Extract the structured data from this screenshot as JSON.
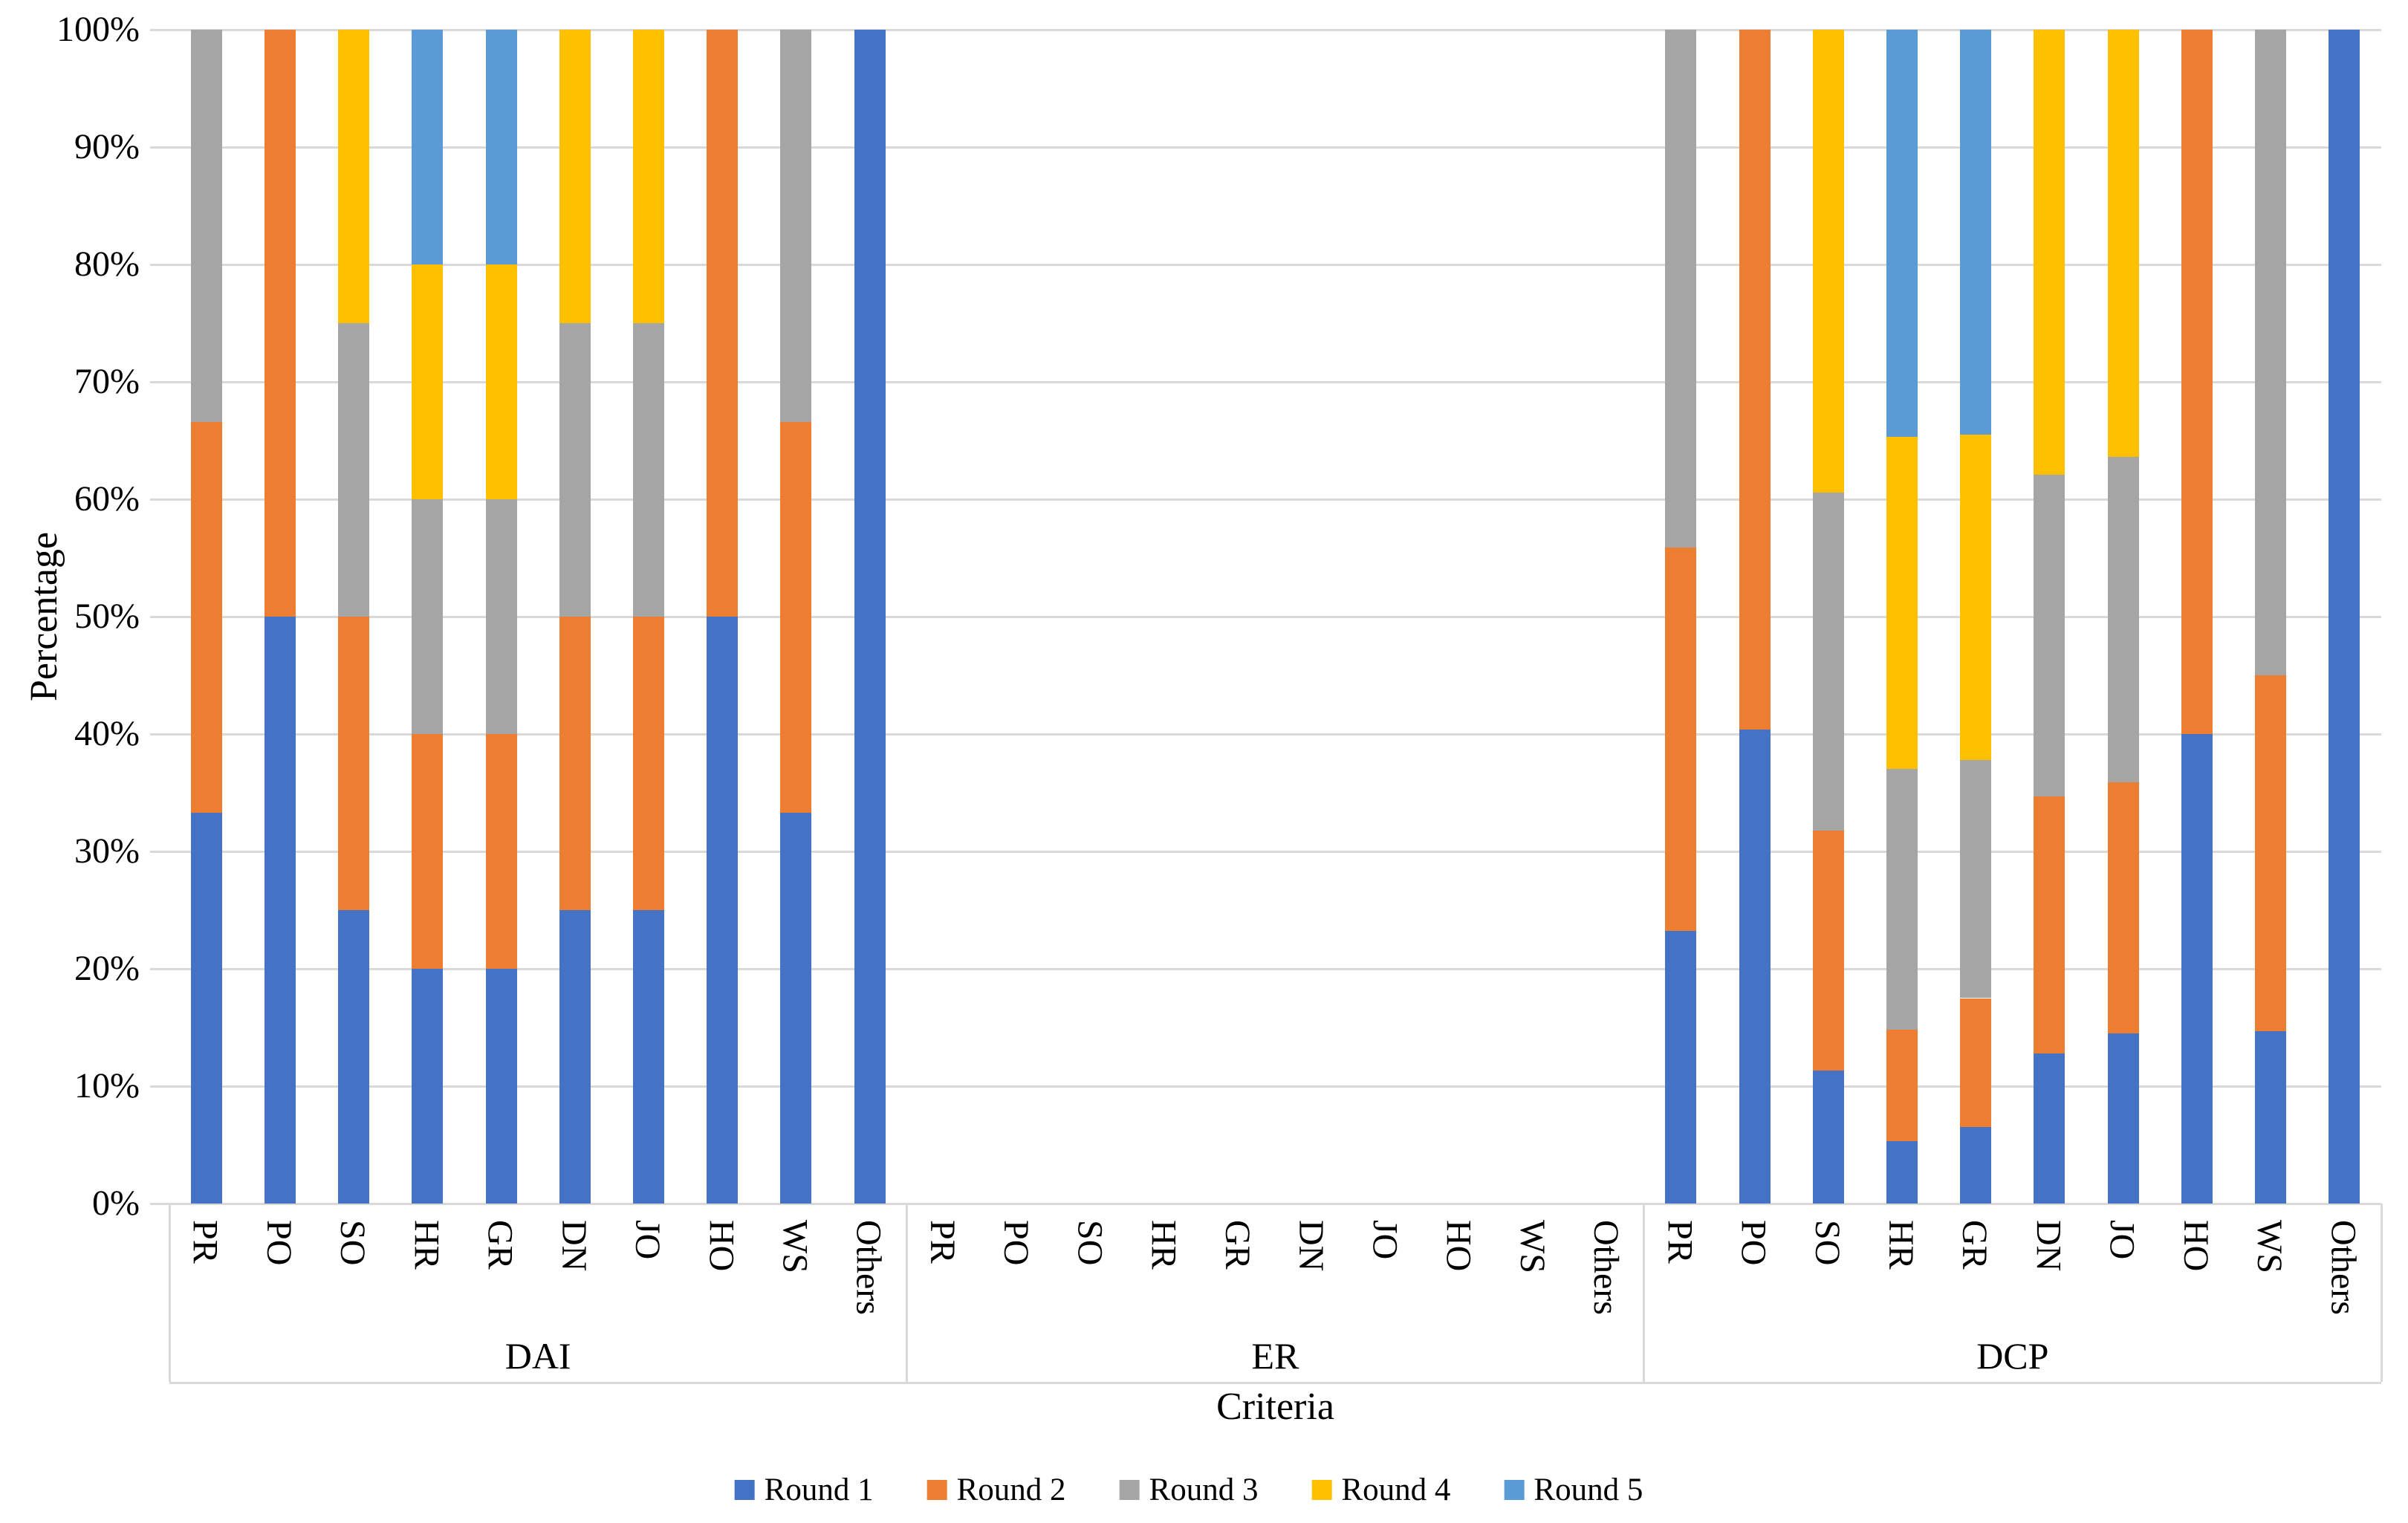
{
  "chart_data": {
    "type": "bar",
    "variant": "stacked-100-percent",
    "title": "",
    "xlabel": "Criteria",
    "ylabel": "Percentage",
    "ylim": [
      0,
      100
    ],
    "grid": true,
    "legend_position": "bottom",
    "y_ticks": [
      "0%",
      "10%",
      "20%",
      "30%",
      "40%",
      "50%",
      "60%",
      "70%",
      "80%",
      "90%",
      "100%"
    ],
    "categories": [
      "PR",
      "PO",
      "SO",
      "HR",
      "GR",
      "DN",
      "JO",
      "HO",
      "WS",
      "Others"
    ],
    "series": [
      {
        "name": "Round 1",
        "color": "#4472C4"
      },
      {
        "name": "Round 2",
        "color": "#ED7D31"
      },
      {
        "name": "Round 3",
        "color": "#A5A5A5"
      },
      {
        "name": "Round 4",
        "color": "#FFC000"
      },
      {
        "name": "Round 5",
        "color": "#5B9BD5"
      }
    ],
    "groups": [
      {
        "label": "DAI",
        "values": [
          [
            33.3,
            33.3,
            33.4,
            0,
            0
          ],
          [
            50,
            50,
            0,
            0,
            0
          ],
          [
            25,
            25,
            25,
            25,
            0
          ],
          [
            20,
            20,
            20,
            20,
            20
          ],
          [
            20,
            20,
            20,
            20,
            20
          ],
          [
            25,
            25,
            25,
            25,
            0
          ],
          [
            25,
            25,
            25,
            25,
            0
          ],
          [
            50,
            50,
            0,
            0,
            0
          ],
          [
            33.3,
            33.3,
            33.4,
            0,
            0
          ],
          [
            100,
            0,
            0,
            0,
            0
          ]
        ]
      },
      {
        "label": "ER",
        "values": [
          [
            0,
            0,
            0,
            0,
            0
          ],
          [
            0,
            0,
            0,
            0,
            0
          ],
          [
            0,
            0,
            0,
            0,
            0
          ],
          [
            0,
            0,
            0,
            0,
            0
          ],
          [
            0,
            0,
            0,
            0,
            0
          ],
          [
            0,
            0,
            0,
            0,
            0
          ],
          [
            0,
            0,
            0,
            0,
            0
          ],
          [
            0,
            0,
            0,
            0,
            0
          ],
          [
            0,
            0,
            0,
            0,
            0
          ],
          [
            0,
            0,
            0,
            0,
            0
          ]
        ]
      },
      {
        "label": "DCP",
        "values": [
          [
            23.2,
            32.7,
            44.1,
            0,
            0
          ],
          [
            40.4,
            59.6,
            0,
            0,
            0
          ],
          [
            11.3,
            20.5,
            28.8,
            39.4,
            0
          ],
          [
            5.3,
            9.5,
            22.2,
            28.3,
            34.7
          ],
          [
            6.5,
            11.0,
            20.3,
            27.7,
            34.5
          ],
          [
            12.8,
            21.9,
            27.4,
            37.9,
            0
          ],
          [
            14.5,
            21.4,
            27.7,
            36.4,
            0
          ],
          [
            40,
            60,
            0,
            0,
            0
          ],
          [
            14.7,
            30.3,
            55.0,
            0,
            0
          ],
          [
            100,
            0,
            0,
            0,
            0
          ]
        ]
      }
    ],
    "style": {
      "gridline_color": "#D9D9D9",
      "axis_line_color": "#D9D9D9",
      "text_color": "#000000",
      "background": "#FFFFFF"
    }
  }
}
